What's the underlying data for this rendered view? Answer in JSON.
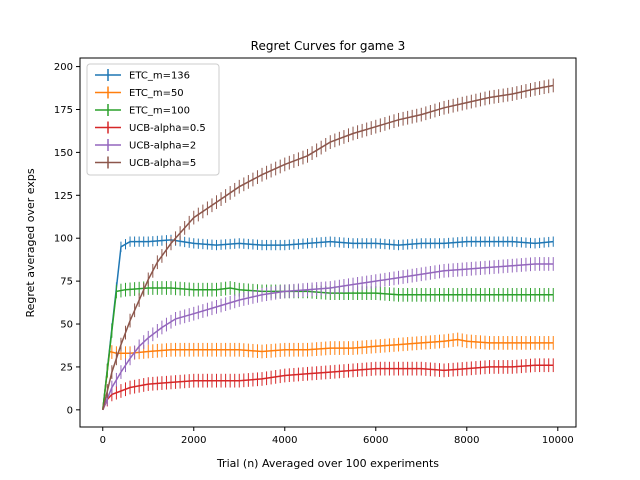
{
  "chart_data": {
    "type": "line",
    "title": "Regret Curves for game 3",
    "xlabel": "Trial (n) Averaged over 100 experiments",
    "ylabel": "Regret averaged over exps",
    "xlim": [
      -500,
      10400
    ],
    "ylim": [
      -10,
      205
    ],
    "xticks": [
      0,
      2000,
      4000,
      6000,
      8000,
      10000
    ],
    "yticks": [
      0,
      25,
      50,
      75,
      100,
      125,
      150,
      175,
      200
    ],
    "grid": false,
    "legend": "top-left",
    "errorbars": true,
    "series": [
      {
        "name": "ETC_m=136",
        "color": "#1f77b4",
        "x": [
          0,
          400,
          600,
          1000,
          1500,
          2000,
          2500,
          3000,
          3500,
          4000,
          4500,
          5000,
          5500,
          6000,
          6500,
          7000,
          7500,
          8000,
          8500,
          9000,
          9500,
          9900
        ],
        "y": [
          0,
          95,
          98,
          98,
          99,
          97,
          96,
          97,
          96,
          96,
          97,
          98,
          97,
          97,
          96,
          97,
          97,
          98,
          98,
          98,
          97,
          98
        ],
        "err": 3
      },
      {
        "name": "ETC_m=50",
        "color": "#ff7f0e",
        "x": [
          0,
          150,
          300,
          600,
          1000,
          1500,
          2000,
          2500,
          3000,
          3500,
          4000,
          4500,
          5000,
          5500,
          6000,
          6500,
          7000,
          7500,
          7800,
          8000,
          8500,
          9000,
          9500,
          9900
        ],
        "y": [
          0,
          34,
          33,
          33,
          34,
          35,
          35,
          35,
          35,
          34,
          35,
          35,
          36,
          36,
          37,
          38,
          39,
          40,
          41,
          40,
          39,
          39,
          39,
          39
        ],
        "err": 4
      },
      {
        "name": "ETC_m=100",
        "color": "#2ca02c",
        "x": [
          0,
          300,
          500,
          1000,
          1500,
          2000,
          2500,
          2800,
          3000,
          3500,
          4000,
          4500,
          5000,
          5500,
          6000,
          6500,
          7000,
          7500,
          8000,
          8500,
          9000,
          9500,
          9900
        ],
        "y": [
          0,
          69,
          70,
          71,
          71,
          70,
          70,
          71,
          70,
          69,
          69,
          69,
          68,
          68,
          68,
          67,
          67,
          67,
          67,
          67,
          67,
          67,
          67
        ],
        "err": 4
      },
      {
        "name": "UCB-alpha=0.5",
        "color": "#d62728",
        "x": [
          0,
          100,
          200,
          400,
          600,
          1000,
          1500,
          2000,
          2500,
          3000,
          3500,
          4000,
          4500,
          5000,
          5500,
          6000,
          6500,
          7000,
          7500,
          8000,
          8500,
          9000,
          9500,
          9900
        ],
        "y": [
          0,
          6,
          9,
          11,
          13,
          15,
          16,
          17,
          17,
          17,
          18,
          20,
          21,
          22,
          23,
          24,
          24,
          24,
          23,
          24,
          25,
          25,
          26,
          26
        ],
        "err": 4
      },
      {
        "name": "UCB-alpha=2",
        "color": "#9467bd",
        "x": [
          0,
          200,
          400,
          600,
          800,
          1000,
          1300,
          1600,
          2000,
          2500,
          3000,
          3500,
          4000,
          4500,
          5000,
          5500,
          6000,
          6500,
          7000,
          7500,
          8000,
          8500,
          9000,
          9500,
          9900
        ],
        "y": [
          0,
          13,
          22,
          30,
          37,
          42,
          48,
          53,
          56,
          60,
          64,
          67,
          69,
          70,
          71,
          73,
          75,
          77,
          79,
          81,
          82,
          83,
          84,
          85,
          85
        ],
        "err": 4
      },
      {
        "name": "UCB-alpha=5",
        "color": "#8c564b",
        "x": [
          0,
          200,
          400,
          600,
          800,
          1000,
          1200,
          1500,
          1800,
          2000,
          2500,
          3000,
          3500,
          4000,
          4500,
          5000,
          5500,
          6000,
          6500,
          7000,
          7500,
          8000,
          8500,
          9000,
          9500,
          9900
        ],
        "y": [
          0,
          22,
          38,
          52,
          64,
          76,
          86,
          97,
          106,
          112,
          121,
          130,
          137,
          143,
          148,
          156,
          161,
          165,
          169,
          172,
          176,
          179,
          182,
          184,
          187,
          189
        ],
        "err": 4
      }
    ]
  }
}
